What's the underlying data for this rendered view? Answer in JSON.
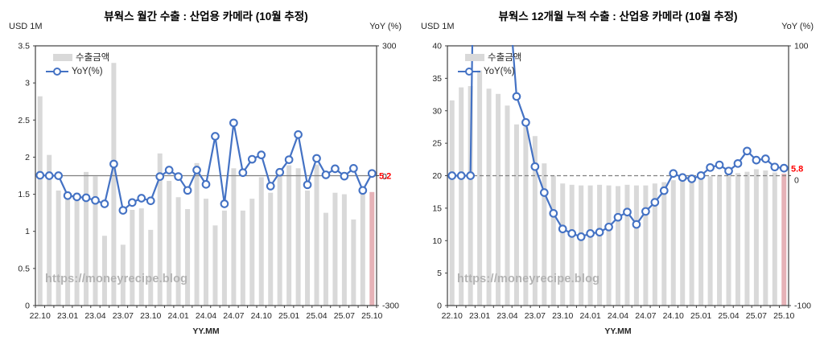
{
  "watermark": "https://moneyrecipe.blog",
  "colors": {
    "bar": "#d9d9d9",
    "estimated_bar": "#e6b2b7",
    "line": "#4472c4",
    "zero_line": "#7f7f7f",
    "annotation": "#ff0000",
    "axis": "#404040",
    "text": "#262626"
  },
  "chart_data": [
    {
      "type": "bar",
      "title": "뷰웍스 월간 수출 : 산업용 카메라 (10월 추정)",
      "xlabel": "YY.MM",
      "watermark": "https://moneyrecipe.blog",
      "categories": [
        "22.10",
        "22.11",
        "22.12",
        "23.01",
        "23.02",
        "23.03",
        "23.04",
        "23.05",
        "23.06",
        "23.07",
        "23.08",
        "23.09",
        "23.10",
        "23.11",
        "23.12",
        "24.01",
        "24.02",
        "24.03",
        "24.04",
        "24.05",
        "24.06",
        "24.07",
        "24.08",
        "24.09",
        "24.10",
        "24.11",
        "24.12",
        "25.01",
        "25.02",
        "25.03",
        "25.04",
        "25.05",
        "25.06",
        "25.07",
        "25.08",
        "25.09",
        "25.10"
      ],
      "x_tick_labels": [
        "22.10",
        "23.01",
        "23.04",
        "23.07",
        "23.10",
        "24.01",
        "24.04",
        "24.07",
        "24.10",
        "25.01",
        "25.04",
        "25.07",
        "25.10"
      ],
      "series": [
        {
          "name": "수출금액",
          "type": "bar",
          "axis": "left",
          "color": "#d9d9d9",
          "last_bar_color": "#e6b2b7",
          "values": [
            2.82,
            2.03,
            1.55,
            1.5,
            1.52,
            1.8,
            1.74,
            0.94,
            3.27,
            0.82,
            1.29,
            1.31,
            1.02,
            2.05,
            1.68,
            1.46,
            1.3,
            1.92,
            1.44,
            1.08,
            1.28,
            1.85,
            1.28,
            1.44,
            1.73,
            1.52,
            1.85,
            1.89,
            1.85,
            1.55,
            1.9,
            1.25,
            1.52,
            1.5,
            1.16,
            1.5,
            1.53
          ]
        },
        {
          "name": "YoY(%)",
          "type": "line",
          "axis": "right",
          "color": "#4472c4",
          "values": [
            1,
            0,
            0,
            -46,
            -49,
            -51,
            -57,
            -65,
            27,
            -80,
            -62,
            -52,
            -58,
            -2,
            13,
            -2,
            -34,
            13,
            -20,
            91,
            -65,
            122,
            7,
            38,
            48,
            -24,
            8,
            37,
            95,
            -21,
            40,
            2,
            16,
            -1,
            17,
            -34,
            5.2
          ]
        }
      ],
      "left_axis": {
        "label": "USD 1M",
        "min": 0,
        "max": 3.5,
        "step": 0.5
      },
      "right_axis": {
        "label": "YoY (%)",
        "min": -300,
        "max": 300,
        "tick_values": [
          300,
          0,
          -300
        ],
        "zero_label_dy": 4.5
      },
      "zero_line": {
        "style": "solid"
      },
      "legend_position": "top-left",
      "annotation": {
        "text": "5.2",
        "color": "#ff0000",
        "dy": 4
      }
    },
    {
      "type": "bar",
      "title": "뷰웍스 12개월 누적 수출 : 산업용 카메라 (10월 추정)",
      "xlabel": "YY.MM",
      "watermark": "https://moneyrecipe.blog",
      "categories": [
        "22.10",
        "22.11",
        "22.12",
        "23.01",
        "23.02",
        "23.03",
        "23.04",
        "23.05",
        "23.06",
        "23.07",
        "23.08",
        "23.09",
        "23.10",
        "23.11",
        "23.12",
        "24.01",
        "24.02",
        "24.03",
        "24.04",
        "24.05",
        "24.06",
        "24.07",
        "24.08",
        "24.09",
        "24.10",
        "24.11",
        "24.12",
        "25.01",
        "25.02",
        "25.03",
        "25.04",
        "25.05",
        "25.06",
        "25.07",
        "25.08",
        "25.09",
        "25.10"
      ],
      "x_tick_labels": [
        "22.10",
        "23.01",
        "23.04",
        "23.07",
        "23.10",
        "24.01",
        "24.04",
        "24.07",
        "24.10",
        "25.01",
        "25.04",
        "25.07",
        "25.10"
      ],
      "series": [
        {
          "name": "수출금액",
          "type": "bar",
          "axis": "left",
          "color": "#d9d9d9",
          "last_bar_color": "#e6b2b7",
          "values": [
            31.6,
            33.6,
            33.8,
            36.2,
            33.4,
            32.6,
            30.8,
            27.9,
            27.5,
            26.1,
            21.9,
            20.0,
            18.8,
            18.6,
            18.5,
            18.5,
            18.6,
            18.5,
            18.4,
            18.6,
            18.5,
            18.5,
            18.8,
            19.0,
            19.3,
            19.2,
            19.6,
            19.8,
            19.9,
            20.1,
            20.3,
            20.4,
            20.6,
            21.0,
            20.8,
            20.5,
            20.3
          ]
        },
        {
          "name": "YoY(%)",
          "type": "line",
          "axis": "right",
          "color": "#4472c4",
          "values": [
            0,
            0,
            0,
            500,
            400,
            250,
            155,
            61,
            41,
            7,
            -13,
            -29,
            -41,
            -44.5,
            -47,
            -44.5,
            -43.5,
            -39.5,
            -32,
            -28,
            -37.5,
            -27.5,
            -20.5,
            -11.5,
            1.7,
            -1.4,
            -2.4,
            0.1,
            6.3,
            8.3,
            3.6,
            9.4,
            19,
            12,
            13,
            6.7,
            5.8
          ]
        }
      ],
      "left_axis": {
        "label": "USD 1M",
        "min": 0,
        "max": 40,
        "step": 5
      },
      "right_axis": {
        "label": "YoY (%)",
        "min": -100,
        "max": 100,
        "tick_values": [
          100,
          0,
          -100
        ],
        "zero_label_dy": 9
      },
      "zero_line": {
        "style": "dashed"
      },
      "legend_position": "top-left",
      "annotation": {
        "text": "5.8",
        "color": "#ff0000",
        "dy": -5
      }
    }
  ]
}
